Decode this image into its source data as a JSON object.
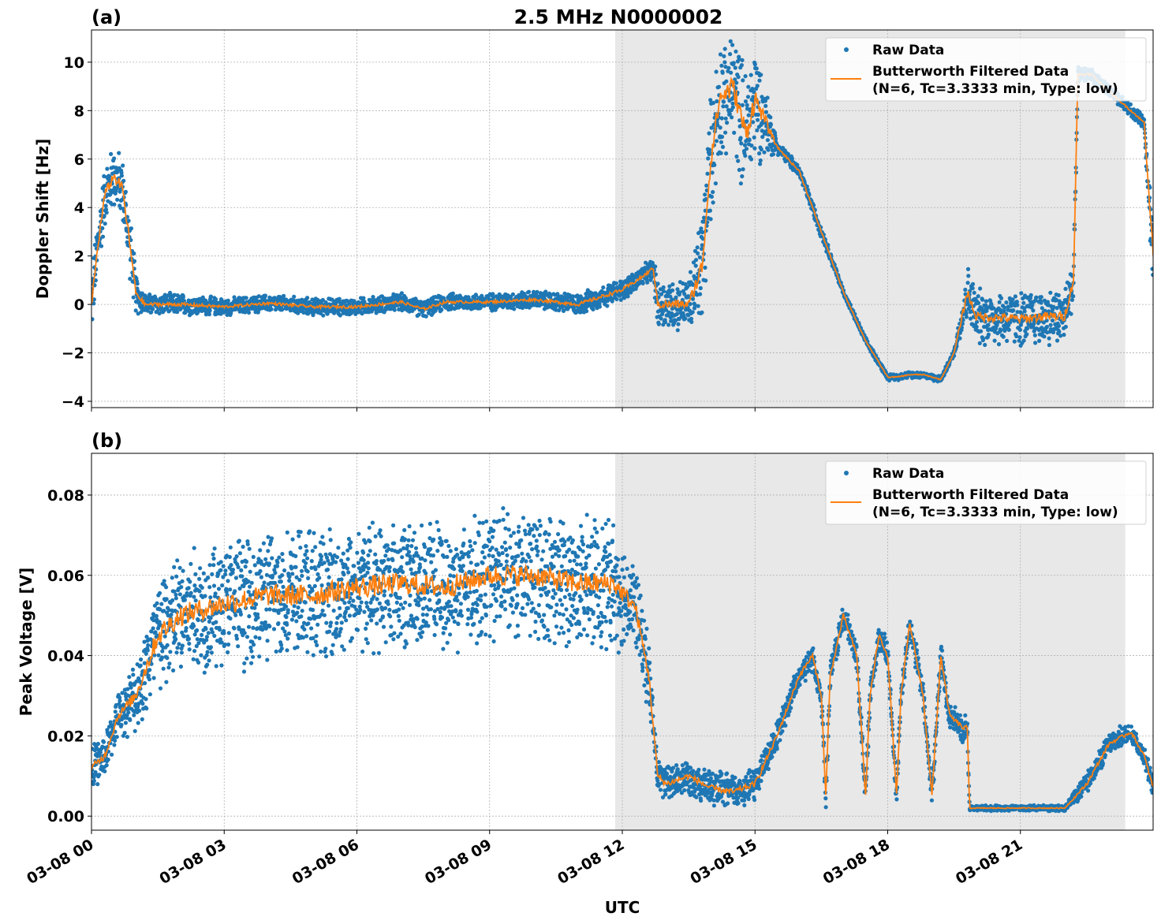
{
  "title": "2.5 MHz N0000002",
  "xlabel": "UTC",
  "x_tick_labels": [
    "03-08 00",
    "03-08 03",
    "03-08 06",
    "03-08 09",
    "03-08 12",
    "03-08 15",
    "03-08 18",
    "03-08 21"
  ],
  "legend": {
    "raw": "Raw Data",
    "filtered_line1": "Butterworth Filtered Data",
    "filtered_line2": "(N=6, Tc=3.3333 min, Type: low)"
  },
  "colors": {
    "raw": "#1f77b4",
    "filtered": "#ff7f0e",
    "shade": "#e8e8e8",
    "grid": "#b0b0b0"
  },
  "chart_data": [
    {
      "type": "scatter+line",
      "panel_label": "(a)",
      "ylabel": "Doppler Shift [Hz]",
      "xlim_hours": [
        0,
        24
      ],
      "ylim": [
        -4.26,
        11.33
      ],
      "y_ticks": [
        -4,
        -2,
        0,
        2,
        4,
        6,
        8,
        10
      ],
      "y_tick_labels": [
        "−4",
        "−2",
        "0",
        "2",
        "4",
        "6",
        "8",
        "10"
      ],
      "grid": true,
      "legend_placement": "top-right",
      "shaded_region_hours": [
        11.84,
        23.37
      ],
      "filtered": {
        "t_hours": [
          0,
          0.15,
          0.3,
          0.5,
          0.7,
          0.9,
          1.0,
          1.2,
          2,
          3,
          4,
          5,
          6,
          7,
          7.5,
          8,
          9,
          10,
          11,
          11.5,
          12,
          12.5,
          12.7,
          12.8,
          13,
          13.5,
          13.8,
          14,
          14.2,
          14.5,
          14.8,
          15.0,
          15.5,
          16.0,
          16.5,
          17,
          17.5,
          18,
          18.2,
          18.5,
          18.8,
          19.2,
          19.5,
          19.8,
          20,
          21,
          21.5,
          22,
          22.2,
          22.3,
          22.6,
          23,
          23.5,
          23.8,
          24
        ],
        "values": [
          0,
          2.5,
          4.5,
          5.3,
          4.8,
          2,
          0.5,
          0,
          0,
          -0.1,
          0.05,
          -0.1,
          -0.1,
          0.1,
          -0.2,
          0.1,
          0.1,
          0.2,
          0,
          0.3,
          0.6,
          1.2,
          1.5,
          0,
          0,
          0,
          1.5,
          6,
          8.5,
          9,
          7,
          8.5,
          6.5,
          5.5,
          3.0,
          0.5,
          -1.5,
          -3.0,
          -3.0,
          -2.9,
          -2.9,
          -3.1,
          -2.0,
          0.5,
          -0.5,
          -0.6,
          -0.5,
          -0.5,
          1.0,
          9.5,
          9.5,
          8.8,
          8,
          7.5,
          2
        ]
      },
      "raw_spread": [
        1.5,
        1.5,
        1.5,
        1.5,
        1.5,
        1.5,
        1.0,
        0.5,
        0.5,
        0.4,
        0.4,
        0.4,
        0.4,
        0.4,
        0.4,
        0.4,
        0.4,
        0.4,
        0.5,
        0.5,
        0.5,
        0.5,
        0.5,
        1.2,
        1.2,
        1.2,
        3,
        3,
        3,
        3,
        3,
        3,
        0.3,
        0.3,
        0.3,
        0.15,
        0.15,
        0.15,
        0.15,
        0.15,
        0.15,
        0.15,
        0.15,
        1.3,
        1.3,
        1.3,
        1.3,
        1.3,
        1.3,
        0.3,
        0.3,
        0.3,
        0.3,
        0.3,
        2
      ]
    },
    {
      "type": "scatter+line",
      "panel_label": "(b)",
      "ylabel": "Peak Voltage [V]",
      "xlim_hours": [
        0,
        24
      ],
      "ylim": [
        -0.0035,
        0.0904
      ],
      "y_ticks": [
        0,
        0.02,
        0.04,
        0.06,
        0.08
      ],
      "y_tick_labels": [
        "0.00",
        "0.02",
        "0.04",
        "0.06",
        "0.08"
      ],
      "grid": true,
      "legend_placement": "top-right",
      "shaded_region_hours": [
        11.84,
        23.37
      ],
      "filtered": {
        "t_hours": [
          0,
          0.3,
          0.6,
          1,
          1.5,
          2,
          3,
          4,
          5,
          6,
          7,
          8,
          9,
          10,
          11,
          11.8,
          12.3,
          12.6,
          12.8,
          13,
          13.5,
          14,
          14.5,
          15,
          15.5,
          16,
          16.3,
          16.5,
          16.6,
          16.7,
          17,
          17.3,
          17.5,
          17.6,
          17.8,
          18,
          18.2,
          18.3,
          18.5,
          18.8,
          19,
          19.2,
          19.4,
          19.7,
          19.8,
          19.85,
          20,
          22,
          22.5,
          23,
          23.5,
          23.8,
          24
        ],
        "values": [
          0.012,
          0.015,
          0.025,
          0.03,
          0.045,
          0.05,
          0.053,
          0.055,
          0.055,
          0.057,
          0.058,
          0.057,
          0.06,
          0.06,
          0.058,
          0.058,
          0.052,
          0.035,
          0.01,
          0.008,
          0.01,
          0.007,
          0.006,
          0.008,
          0.02,
          0.035,
          0.04,
          0.03,
          0.005,
          0.035,
          0.05,
          0.04,
          0.005,
          0.03,
          0.045,
          0.04,
          0.005,
          0.03,
          0.048,
          0.03,
          0.005,
          0.04,
          0.025,
          0.022,
          0.022,
          0.002,
          0.002,
          0.002,
          0.008,
          0.018,
          0.021,
          0.015,
          0.007
        ]
      },
      "raw_spread": [
        0.006,
        0.006,
        0.006,
        0.01,
        0.018,
        0.018,
        0.018,
        0.018,
        0.018,
        0.018,
        0.018,
        0.018,
        0.018,
        0.018,
        0.018,
        0.018,
        0.012,
        0.01,
        0.005,
        0.005,
        0.005,
        0.005,
        0.005,
        0.005,
        0.004,
        0.004,
        0.004,
        0.004,
        0.004,
        0.004,
        0.004,
        0.004,
        0.004,
        0.004,
        0.004,
        0.004,
        0.004,
        0.004,
        0.004,
        0.004,
        0.004,
        0.004,
        0.004,
        0.004,
        0.004,
        0.0008,
        0.0008,
        0.0008,
        0.003,
        0.003,
        0.003,
        0.003,
        0.003
      ]
    }
  ]
}
